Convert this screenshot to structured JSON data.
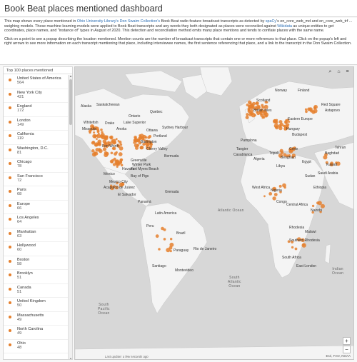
{
  "header": {
    "title": "Book Beat places mentioned dashboard"
  },
  "description": {
    "p1_a": "This map shows every place mentioned in ",
    "p1_link1": "Ohio University Library's Don Swaim Collection's",
    "p1_b": " Book Beat radio feature broadcast transcripts as detected by ",
    "p1_link2": "spaCy",
    "p1_c": "'s en_core_web_md and en_core_web_trf ... weighing models. These machine learning models were applied to Book Beat transcripts and any words they both designated as places were reconciled against",
    "p1_link3": "Wikidata",
    "p1_d": " as unique entities to get coordinates, place names, and \"instance of\" types in August of 2020. This detection and reconciliation method omits many place mentions and tends to conflate places with the same name.",
    "p2": "Click on a point to see a popup describing the location mentioned. Mention counts are the number of broadcast transcripts that contain one or more references to that place. Click on the popup's left and right arrows to see more information on each transcript mentioning that place, including interviewee names, the first sentence referencing that place, and a link to the transcript in the Don Swaim Collection."
  },
  "list": {
    "title": "Top 100 places mentioned",
    "items": [
      {
        "name": "United States of America",
        "count": "564"
      },
      {
        "name": "New York City",
        "count": "421"
      },
      {
        "name": "England",
        "count": "172"
      },
      {
        "name": "London",
        "count": "149"
      },
      {
        "name": "California",
        "count": "119"
      },
      {
        "name": "Washington, D.C.",
        "count": "81"
      },
      {
        "name": "Chicago",
        "count": "78"
      },
      {
        "name": "San Francisco",
        "count": "72"
      },
      {
        "name": "Paris",
        "count": "68"
      },
      {
        "name": "Europe",
        "count": "66"
      },
      {
        "name": "Los Angeles",
        "count": "64"
      },
      {
        "name": "Manhattan",
        "count": "63"
      },
      {
        "name": "Hollywood",
        "count": "60"
      },
      {
        "name": "Boston",
        "count": "58"
      },
      {
        "name": "Brooklyn",
        "count": "51"
      },
      {
        "name": "Canada",
        "count": "51"
      },
      {
        "name": "United Kingdom",
        "count": "50"
      },
      {
        "name": "Massachusetts",
        "count": "49"
      },
      {
        "name": "North Carolina",
        "count": "49"
      },
      {
        "name": "Ohio",
        "count": "48"
      }
    ]
  },
  "map": {
    "last_update": "Last update: a few seconds ago",
    "attribution": "Esri, FAO, NOAA",
    "zoom_in": "+",
    "zoom_out": "−",
    "labels": {
      "alaska": "Alaska",
      "saskatchewan": "Saskatchewan",
      "ontario": "Ontario",
      "quebec": "Quebec",
      "whitefish": "Whitefish",
      "drake": "Drake",
      "lake_superior": "Lake Superior",
      "missoula": "Missoula",
      "anoka": "Anoka",
      "ottawa": "Ottawa",
      "sydney_harbour": "Sydney Harbour",
      "portland": "Portland",
      "burlington": "Burlington",
      "cherry_valley": "Cherry Valley",
      "fort_worth": "Fort Worth",
      "bermuda": "Bermuda",
      "greenville": "Greenville",
      "mexico": "Mexico",
      "mexico_city": "Mexico City",
      "acapulco": "Acapulco de Juárez",
      "havana": "Havana",
      "winter_park": "Winter Park",
      "fort_myers": "Fort Myers Beach",
      "bay_of_pigs": "Bay of Pigs",
      "el_salvador": "El Salvador",
      "grenada": "Grenada",
      "panama": "Panamá",
      "latin_america": "Latin America",
      "peru": "Peru",
      "brazil": "Brazil",
      "paraguay": "Paraguay",
      "rio": "Rio de Janeiro",
      "santiago": "Santiago",
      "montevideo": "Montevideo",
      "scotland": "Scotland",
      "norway": "Norway",
      "finland": "Finland",
      "british_isles": "British Isles",
      "eastern_europe": "Eastern Europe",
      "hungary": "Hungary",
      "budapest": "Budapest",
      "red_square": "Red Square",
      "astapovo": "Astapovo",
      "pamplona": "Pamplona",
      "tangier": "Tangier",
      "casablanca": "Casablanca",
      "algeria": "Algeria",
      "tripoli": "Tripoli",
      "benghazi": "Benghazi",
      "crete": "Crete",
      "libya": "Libya",
      "egypt": "Egypt",
      "baghdad": "Baghdad",
      "tehran": "Tehran",
      "west_africa": "West Africa",
      "nigeria": "Nigeria",
      "congo": "Congo",
      "central_africa": "Central Africa",
      "nairobi": "Nairobi",
      "rhodesia": "Rhodesia",
      "malawi": "Malawi",
      "southern_rhodesia": "Southern Rhodesia",
      "south_africa": "South Africa",
      "east_london": "East London",
      "ethiopia": "Ethiopia",
      "sudan": "Sudan",
      "kuwait": "Kuwait",
      "saudi": "Saudi Arabia"
    },
    "oceans": {
      "atlantic": "Atlantic Ocean",
      "south_atlantic": "South\nAtlantic\nOcean",
      "indian": "Indian\nOcean",
      "south_pacific": "South\nPacific\nOcean"
    }
  },
  "colors": {
    "point": "#e5802e",
    "land": "#f4f4f4",
    "water": "#d7d7d7",
    "link": "#2a6db3"
  }
}
